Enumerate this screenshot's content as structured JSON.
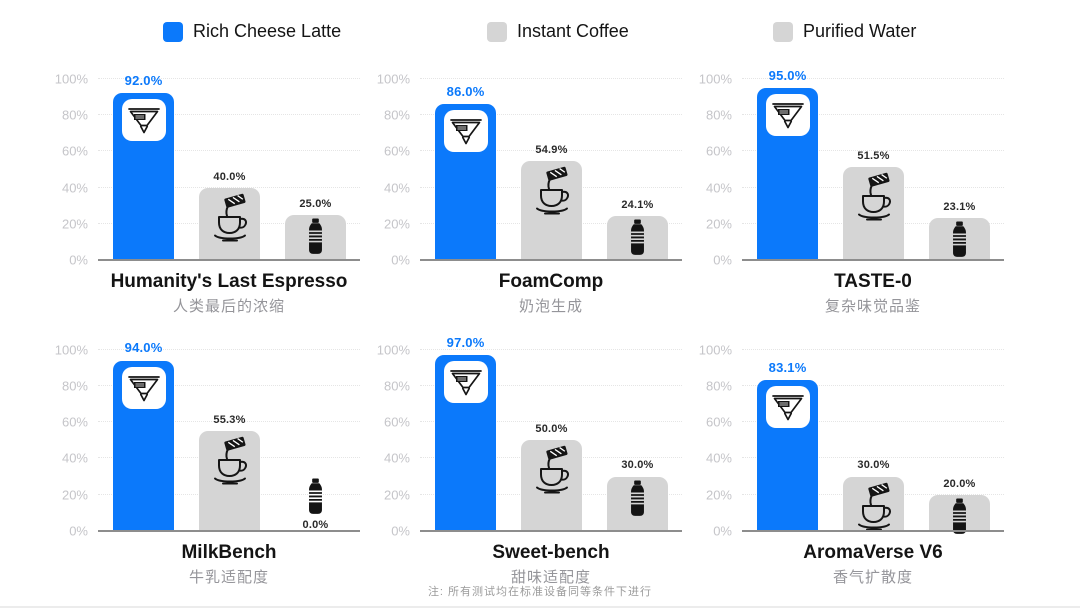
{
  "legend": {
    "items": [
      {
        "label": "Rich Cheese Latte",
        "color": "#0b79fb"
      },
      {
        "label": "Instant Coffee",
        "color": "#d5d5d5"
      },
      {
        "label": "Purified Water",
        "color": "#d5d5d5"
      }
    ]
  },
  "series": [
    {
      "name": "Rich Cheese Latte",
      "color": "#0b79fb",
      "icon": "pourover-dripper-icon",
      "label_color": "#0b79fb"
    },
    {
      "name": "Instant Coffee",
      "color": "#d5d5d5",
      "icon": "instant-coffee-cup-icon",
      "label_color": "#2a2a2a"
    },
    {
      "name": "Purified Water",
      "color": "#d5d5d5",
      "icon": "water-bottle-icon",
      "label_color": "#2a2a2a"
    }
  ],
  "axis": {
    "yticks": [
      "0%",
      "20%",
      "40%",
      "60%",
      "80%",
      "100%"
    ]
  },
  "chart_data": [
    {
      "type": "bar",
      "title": "Humanity's Last Espresso",
      "subtitle": "人类最后的浓缩",
      "categories": [
        "Rich Cheese Latte",
        "Instant Coffee",
        "Purified Water"
      ],
      "values": [
        92.0,
        40.0,
        25.0
      ],
      "value_labels": [
        "92.0%",
        "40.0%",
        "25.0%"
      ],
      "ylim": [
        0,
        100
      ]
    },
    {
      "type": "bar",
      "title": "FoamComp",
      "subtitle": "奶泡生成",
      "categories": [
        "Rich Cheese Latte",
        "Instant Coffee",
        "Purified Water"
      ],
      "values": [
        86.0,
        54.9,
        24.1
      ],
      "value_labels": [
        "86.0%",
        "54.9%",
        "24.1%"
      ],
      "ylim": [
        0,
        100
      ]
    },
    {
      "type": "bar",
      "title": "TASTE-0",
      "subtitle": "复杂味觉品鉴",
      "categories": [
        "Rich Cheese Latte",
        "Instant Coffee",
        "Purified Water"
      ],
      "values": [
        95.0,
        51.5,
        23.1
      ],
      "value_labels": [
        "95.0%",
        "51.5%",
        "23.1%"
      ],
      "ylim": [
        0,
        100
      ]
    },
    {
      "type": "bar",
      "title": "MilkBench",
      "subtitle": "牛乳适配度",
      "categories": [
        "Rich Cheese Latte",
        "Instant Coffee",
        "Purified Water"
      ],
      "values": [
        94.0,
        55.3,
        0.0
      ],
      "value_labels": [
        "94.0%",
        "55.3%",
        "0.0%"
      ],
      "ylim": [
        0,
        100
      ]
    },
    {
      "type": "bar",
      "title": "Sweet-bench",
      "subtitle": "甜味适配度",
      "categories": [
        "Rich Cheese Latte",
        "Instant Coffee",
        "Purified Water"
      ],
      "values": [
        97.0,
        50.0,
        30.0
      ],
      "value_labels": [
        "97.0%",
        "50.0%",
        "30.0%"
      ],
      "ylim": [
        0,
        100
      ]
    },
    {
      "type": "bar",
      "title": "AromaVerse V6",
      "subtitle": "香气扩散度",
      "categories": [
        "Rich Cheese Latte",
        "Instant Coffee",
        "Purified Water"
      ],
      "values": [
        83.1,
        30.0,
        20.0
      ],
      "value_labels": [
        "83.1%",
        "30.0%",
        "20.0%"
      ],
      "ylim": [
        0,
        100
      ]
    }
  ],
  "footnote": "注: 所有测试均在标准设备同等条件下进行"
}
